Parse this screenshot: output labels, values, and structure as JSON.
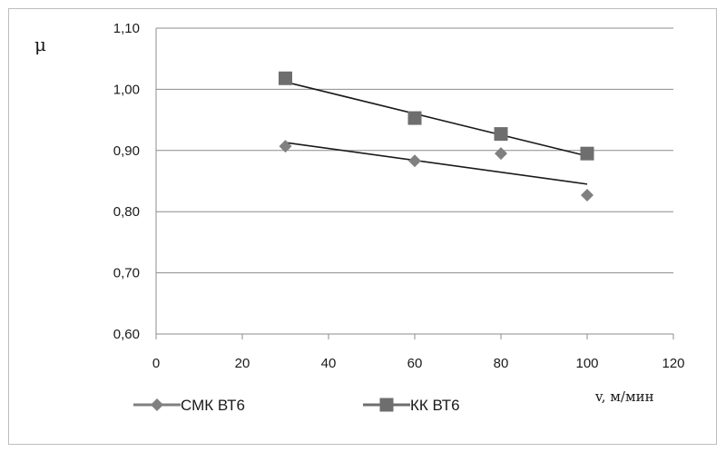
{
  "chart_data": {
    "type": "scatter",
    "xlabel": "v, м/мин",
    "ylabel": "μ",
    "xlim": [
      0,
      120
    ],
    "ylim": [
      0.6,
      1.1
    ],
    "x_ticks": [
      "0",
      "20",
      "40",
      "60",
      "80",
      "100",
      "120"
    ],
    "y_ticks": [
      "0,60",
      "0,70",
      "0,80",
      "0,90",
      "1,00",
      "1,10"
    ],
    "grid": "horizontal",
    "legend_position": "bottom-left",
    "series": [
      {
        "name": "СМК ВТ6",
        "marker": "diamond",
        "color": "#808080",
        "x": [
          30,
          60,
          80,
          100
        ],
        "y": [
          0.907,
          0.883,
          0.895,
          0.827
        ],
        "trendline": {
          "x": [
            30,
            100
          ],
          "y": [
            0.913,
            0.845
          ]
        }
      },
      {
        "name": "КК ВТ6",
        "marker": "square",
        "color": "#6e6e6e",
        "x": [
          30,
          60,
          80,
          100
        ],
        "y": [
          1.018,
          0.953,
          0.927,
          0.895
        ],
        "trendline": {
          "x": [
            30,
            100
          ],
          "y": [
            1.012,
            0.891
          ]
        }
      }
    ]
  }
}
